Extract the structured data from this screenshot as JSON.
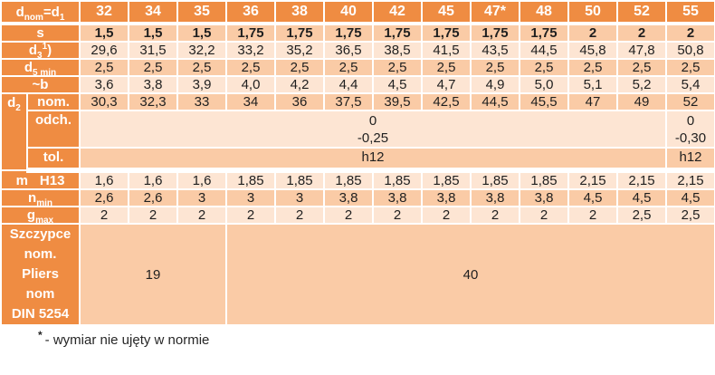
{
  "theme": {
    "header_bg": "#EF8C42",
    "row_light": "#FDE5D3",
    "row_medium": "#FACBA6",
    "grid": "#FFFFFF",
    "text": "#1F1F1F",
    "label_text": "#FFFFFF"
  },
  "columns": [
    "32",
    "34",
    "35",
    "36",
    "38",
    "40",
    "42",
    "45",
    "47*",
    "48",
    "50",
    "52",
    "55"
  ],
  "labels": {
    "header": [
      {
        "t": "d"
      },
      {
        "t": "nom",
        "s": "sub"
      },
      {
        "t": "=d"
      },
      {
        "t": "1",
        "s": "sub"
      }
    ],
    "s": [
      {
        "t": "s"
      }
    ],
    "d3": [
      {
        "t": "d"
      },
      {
        "t": "3",
        "s": "sub"
      },
      {
        "t": "1",
        "s": "sup"
      },
      {
        "t": ")"
      }
    ],
    "d5min": [
      {
        "t": "d"
      },
      {
        "t": "5 min",
        "s": "sub"
      }
    ],
    "b": [
      {
        "t": "~b"
      }
    ],
    "d2": [
      {
        "t": "d"
      },
      {
        "t": "2",
        "s": "sub"
      }
    ],
    "nom": "nom.",
    "odch": "odch.",
    "tol": "tol.",
    "m": [
      {
        "t": "m"
      },
      {
        "t": "H13",
        "s": "gap"
      }
    ],
    "n": [
      {
        "t": "n"
      },
      {
        "t": "min",
        "s": "sub"
      }
    ],
    "g": [
      {
        "t": "g"
      },
      {
        "t": "max",
        "s": "sub"
      }
    ],
    "pliers_lines": [
      "Szczypce",
      "nom.",
      "Pliers",
      "nom",
      "DIN 5254"
    ]
  },
  "values": {
    "s": [
      "1,5",
      "1,5",
      "1,5",
      "1,75",
      "1,75",
      "1,75",
      "1,75",
      "1,75",
      "1,75",
      "1,75",
      "2",
      "2",
      "2"
    ],
    "d3": [
      "29,6",
      "31,5",
      "32,2",
      "33,2",
      "35,2",
      "36,5",
      "38,5",
      "41,5",
      "43,5",
      "44,5",
      "45,8",
      "47,8",
      "50,8"
    ],
    "d5min": [
      "2,5",
      "2,5",
      "2,5",
      "2,5",
      "2,5",
      "2,5",
      "2,5",
      "2,5",
      "2,5",
      "2,5",
      "2,5",
      "2,5",
      "2,5"
    ],
    "b": [
      "3,6",
      "3,8",
      "3,9",
      "4,0",
      "4,2",
      "4,4",
      "4,5",
      "4,7",
      "4,9",
      "5,0",
      "5,1",
      "5,2",
      "5,4"
    ],
    "d2nom": [
      "30,3",
      "32,3",
      "33",
      "34",
      "36",
      "37,5",
      "39,5",
      "42,5",
      "44,5",
      "45,5",
      "47",
      "49",
      "52"
    ],
    "m": [
      "1,6",
      "1,6",
      "1,6",
      "1,85",
      "1,85",
      "1,85",
      "1,85",
      "1,85",
      "1,85",
      "1,85",
      "2,15",
      "2,15",
      "2,15"
    ],
    "n": [
      "2,6",
      "2,6",
      "3",
      "3",
      "3",
      "3,8",
      "3,8",
      "3,8",
      "3,8",
      "3,8",
      "4,5",
      "4,5",
      "4,5"
    ],
    "g": [
      "2",
      "2",
      "2",
      "2",
      "2",
      "2",
      "2",
      "2",
      "2",
      "2",
      "2",
      "2,5",
      "2,5"
    ]
  },
  "spans": {
    "odch_main": [
      "0",
      "-0,25"
    ],
    "odch_last": [
      "0",
      "-0,30"
    ],
    "tol_main": "h12",
    "tol_last": "h12",
    "pliers_first": "19",
    "pliers_second": "40"
  },
  "footnote": {
    "marker": "*",
    "text": "- wymiar nie ujęty w normie"
  }
}
